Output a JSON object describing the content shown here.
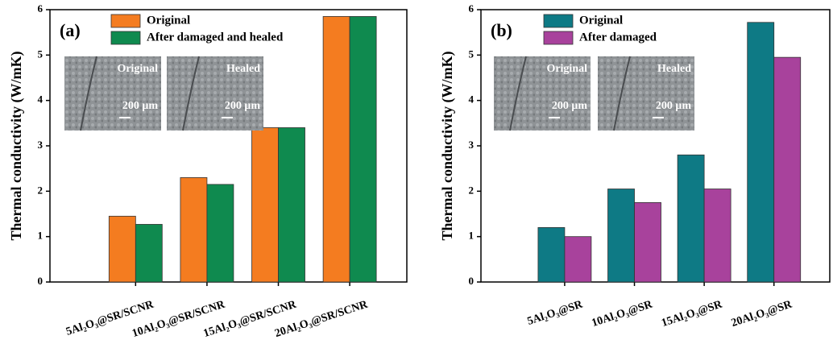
{
  "chart_data": [
    {
      "type": "bar",
      "label": "(a)",
      "y_label": "Thermal conductivity (W/mK)",
      "categories": [
        "5Al₂O₃@SR/SCNR",
        "10Al₂O₃@SR/SCNR",
        "15Al₂O₃@SR/SCNR",
        "20Al₂O₃@SR/SCNR"
      ],
      "series": [
        {
          "name": "Original",
          "color": "#f47c20",
          "values": [
            1.45,
            2.3,
            3.4,
            5.85
          ]
        },
        {
          "name": "After damaged and healed",
          "color": "#0f8a4f",
          "values": [
            1.27,
            2.15,
            3.4,
            5.85
          ]
        }
      ],
      "ylim": [
        0,
        6
      ],
      "yticks": [
        0,
        1,
        2,
        3,
        4,
        5,
        6
      ],
      "insets": [
        {
          "label": "Original",
          "scale": "200 μm"
        },
        {
          "label": "Healed",
          "scale": "200 μm"
        }
      ]
    },
    {
      "type": "bar",
      "label": "(b)",
      "y_label": "Thermal conductivity (W/mK)",
      "categories": [
        "5Al₂O₃@SR",
        "10Al₂O₃@SR",
        "15Al₂O₃@SR",
        "20Al₂O₃@SR"
      ],
      "series": [
        {
          "name": "Original",
          "color": "#0e7a85",
          "values": [
            1.2,
            2.05,
            2.8,
            5.72
          ]
        },
        {
          "name": "After damaged",
          "color": "#a8429c",
          "values": [
            1.0,
            1.75,
            2.05,
            4.95
          ]
        }
      ],
      "ylim": [
        0,
        6
      ],
      "yticks": [
        0,
        1,
        2,
        3,
        4,
        5,
        6
      ],
      "insets": [
        {
          "label": "Original",
          "scale": "200 μm"
        },
        {
          "label": "Healed",
          "scale": "200 μm"
        }
      ]
    }
  ]
}
